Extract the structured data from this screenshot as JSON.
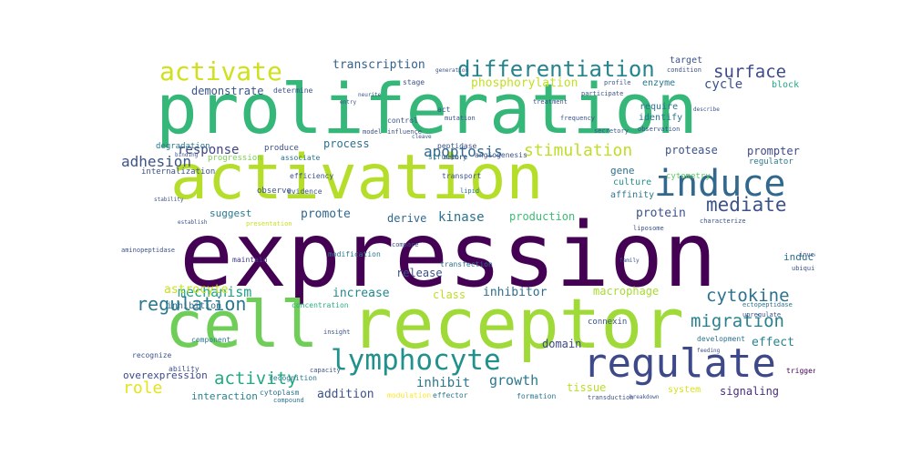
{
  "words": [
    {
      "text": "expression",
      "color": "#440154"
    },
    {
      "text": "proliferation",
      "color": "#35b779"
    },
    {
      "text": "receptor",
      "color": "#a0da39"
    },
    {
      "text": "activation",
      "color": "#b5de2b"
    },
    {
      "text": "cell",
      "color": "#6ece58"
    },
    {
      "text": "regulate",
      "color": "#3e4989"
    },
    {
      "text": "induce",
      "color": "#31688e"
    },
    {
      "text": "lymphocyte",
      "color": "#21918c"
    },
    {
      "text": "differentiation",
      "color": "#25858e"
    },
    {
      "text": "activate",
      "color": "#d0e11c"
    },
    {
      "text": "surface",
      "color": "#3e4a89"
    },
    {
      "text": "migration",
      "color": "#26828e"
    },
    {
      "text": "cytokine",
      "color": "#2c728e"
    },
    {
      "text": "mediate",
      "color": "#3b528b"
    },
    {
      "text": "stimulation",
      "color": "#bddf26"
    },
    {
      "text": "apoptosis",
      "color": "#31688e"
    },
    {
      "text": "regulation",
      "color": "#2a788e"
    },
    {
      "text": "adhesion",
      "color": "#3b528b"
    },
    {
      "text": "mechanism",
      "color": "#20a386"
    },
    {
      "text": "activity",
      "color": "#22a884"
    },
    {
      "text": "growth",
      "color": "#2a788e"
    },
    {
      "text": "role",
      "color": "#e5e419"
    },
    {
      "text": "transcription",
      "color": "#33638d"
    },
    {
      "text": "phosphorylation",
      "color": "#c2df23"
    },
    {
      "text": "demonstrate",
      "color": "#39568c"
    },
    {
      "text": "response",
      "color": "#414487"
    },
    {
      "text": "process",
      "color": "#2d708e"
    },
    {
      "text": "astrocyte",
      "color": "#c8e020"
    },
    {
      "text": "promote",
      "color": "#31688e"
    },
    {
      "text": "increase",
      "color": "#23888e"
    },
    {
      "text": "inhibitor",
      "color": "#2e6e8e"
    },
    {
      "text": "class",
      "color": "#bddf26"
    },
    {
      "text": "macrophage",
      "color": "#a8db34"
    },
    {
      "text": "kinase",
      "color": "#2c728e"
    },
    {
      "text": "production",
      "color": "#3dbc74"
    },
    {
      "text": "derive",
      "color": "#31688e"
    },
    {
      "text": "release",
      "color": "#3b528b"
    },
    {
      "text": "inhibit",
      "color": "#2a788e"
    },
    {
      "text": "addition",
      "color": "#3b528b"
    },
    {
      "text": "interaction",
      "color": "#25838e"
    },
    {
      "text": "effect",
      "color": "#26828e"
    },
    {
      "text": "signaling",
      "color": "#472d7b"
    },
    {
      "text": "tissue",
      "color": "#b8de29"
    },
    {
      "text": "system",
      "color": "#d8e219"
    },
    {
      "text": "domain",
      "color": "#3e4989"
    },
    {
      "text": "protein",
      "color": "#3b528b"
    },
    {
      "text": "protease",
      "color": "#3b528b"
    },
    {
      "text": "prompter",
      "color": "#3e4989"
    },
    {
      "text": "regulator",
      "color": "#2a788e"
    },
    {
      "text": "induction",
      "color": "#2c728e"
    },
    {
      "text": "gene",
      "color": "#2c728e"
    },
    {
      "text": "culture",
      "color": "#21918c"
    },
    {
      "text": "affinity",
      "color": "#2a788e"
    },
    {
      "text": "cycle",
      "color": "#3b528b"
    },
    {
      "text": "block",
      "color": "#22a884"
    },
    {
      "text": "enzyme",
      "color": "#2a788e"
    },
    {
      "text": "target",
      "color": "#3b528b"
    },
    {
      "text": "identify",
      "color": "#2c728e"
    },
    {
      "text": "require",
      "color": "#2c728e"
    },
    {
      "text": "suggest",
      "color": "#2a788e"
    },
    {
      "text": "overexpression",
      "color": "#3e4989"
    },
    {
      "text": "inhibition",
      "color": "#2c728e"
    },
    {
      "text": "connexin",
      "color": "#3b528b"
    },
    {
      "text": "formation",
      "color": "#2a788e"
    },
    {
      "text": "development",
      "color": "#2c728e"
    },
    {
      "text": "cytometry",
      "color": "#5ec962"
    },
    {
      "text": "internalization",
      "color": "#3b528b"
    },
    {
      "text": "degradation",
      "color": "#2a788e"
    },
    {
      "text": "progression",
      "color": "#7ad151"
    },
    {
      "text": "observe",
      "color": "#3b528b"
    },
    {
      "text": "maintain",
      "color": "#443a83"
    },
    {
      "text": "component",
      "color": "#2a788e"
    },
    {
      "text": "recognize",
      "color": "#3b528b"
    },
    {
      "text": "ability",
      "color": "#3b528b"
    },
    {
      "text": "transfection",
      "color": "#2c728e"
    },
    {
      "text": "modification",
      "color": "#2a788e"
    },
    {
      "text": "angiogenesis",
      "color": "#3b528b"
    },
    {
      "text": "cytoplasm",
      "color": "#2c728e"
    },
    {
      "text": "concentration",
      "color": "#29af7f"
    },
    {
      "text": "recognition",
      "color": "#2a788e"
    },
    {
      "text": "peptidase",
      "color": "#3b528b"
    },
    {
      "text": "transport",
      "color": "#3b528b"
    },
    {
      "text": "efficiency",
      "color": "#3b528b"
    },
    {
      "text": "evidence",
      "color": "#3b528b"
    },
    {
      "text": "produce",
      "color": "#3b528b"
    },
    {
      "text": "associate",
      "color": "#2c728e"
    },
    {
      "text": "stage",
      "color": "#3b528b"
    },
    {
      "text": "control",
      "color": "#3b528b"
    },
    {
      "text": "determine",
      "color": "#3b528b"
    },
    {
      "text": "act",
      "color": "#3b528b"
    },
    {
      "text": "influence",
      "color": "#3b528b"
    },
    {
      "text": "structure",
      "color": "#2a788e"
    },
    {
      "text": "frequency",
      "color": "#3b528b"
    },
    {
      "text": "observation",
      "color": "#3b528b"
    },
    {
      "text": "participate",
      "color": "#3b528b"
    },
    {
      "text": "secretory",
      "color": "#3b528b"
    },
    {
      "text": "condition",
      "color": "#3b528b"
    },
    {
      "text": "profile",
      "color": "#3b528b"
    },
    {
      "text": "memory",
      "color": "#3b528b"
    },
    {
      "text": "lipid",
      "color": "#2c728e"
    },
    {
      "text": "mutation",
      "color": "#3b528b"
    },
    {
      "text": "treatment",
      "color": "#3b528b"
    },
    {
      "text": "model",
      "color": "#3b528b"
    },
    {
      "text": "compare",
      "color": "#3b528b"
    },
    {
      "text": "modulation",
      "color": "#fde725"
    },
    {
      "text": "effector",
      "color": "#2a788e"
    },
    {
      "text": "aminopeptidase",
      "color": "#3b528b"
    },
    {
      "text": "ectopeptidase",
      "color": "#2c728e"
    },
    {
      "text": "characterize",
      "color": "#3b528b"
    },
    {
      "text": "ubiquitination",
      "color": "#3b528b"
    },
    {
      "text": "investigate",
      "color": "#3b528b"
    },
    {
      "text": "upregulate",
      "color": "#3b528b"
    },
    {
      "text": "binding",
      "color": "#3b528b"
    },
    {
      "text": "feeding",
      "color": "#3b528b"
    },
    {
      "text": "trigger",
      "color": "#440154"
    },
    {
      "text": "transduction",
      "color": "#3b528b"
    },
    {
      "text": "compound",
      "color": "#2c728e"
    },
    {
      "text": "capacity",
      "color": "#3b528b"
    },
    {
      "text": "insight",
      "color": "#3b528b"
    },
    {
      "text": "presentation",
      "color": "#c8e020"
    },
    {
      "text": "establish",
      "color": "#3b528b"
    },
    {
      "text": "stability",
      "color": "#3b528b"
    },
    {
      "text": "neurite",
      "color": "#3b528b"
    },
    {
      "text": "family",
      "color": "#3b528b"
    },
    {
      "text": "liposome",
      "color": "#3b528b"
    },
    {
      "text": "generation",
      "color": "#3b528b"
    },
    {
      "text": "entry",
      "color": "#3b528b"
    },
    {
      "text": "cleave",
      "color": "#3b528b"
    },
    {
      "text": "breakdown",
      "color": "#3b528b"
    },
    {
      "text": "describe",
      "color": "#3b528b"
    }
  ]
}
